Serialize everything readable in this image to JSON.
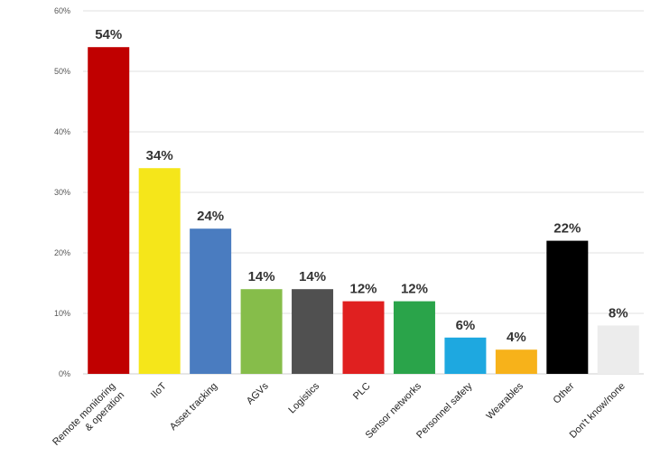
{
  "chart_data": {
    "type": "bar",
    "categories": [
      [
        "Remote monitoring",
        "& operation"
      ],
      [
        "IIoT"
      ],
      [
        "Asset tracking"
      ],
      [
        "AGVs"
      ],
      [
        "Logistics"
      ],
      [
        "PLC"
      ],
      [
        "Sensor networks"
      ],
      [
        "Personnel safety"
      ],
      [
        "Wearables"
      ],
      [
        "Other"
      ],
      [
        "Don't know/none"
      ]
    ],
    "values": [
      54,
      34,
      24,
      14,
      14,
      12,
      12,
      6,
      4,
      22,
      8
    ],
    "data_labels": [
      "54%",
      "34%",
      "24%",
      "14%",
      "14%",
      "12%",
      "12%",
      "6%",
      "4%",
      "22%",
      "8%"
    ],
    "colors": [
      "#c00000",
      "#f5e61a",
      "#4a7cc0",
      "#86bd4a",
      "#505050",
      "#e02020",
      "#2aa44a",
      "#1ea8e0",
      "#f7b21a",
      "#000000",
      "#ececec"
    ],
    "yticks": [
      0,
      10,
      20,
      30,
      40,
      50,
      60
    ],
    "ytick_labels": [
      "0%",
      "10%",
      "20%",
      "30%",
      "40%",
      "50%",
      "60%"
    ],
    "ylim": [
      0,
      60
    ],
    "grid": true,
    "legend": "none"
  }
}
